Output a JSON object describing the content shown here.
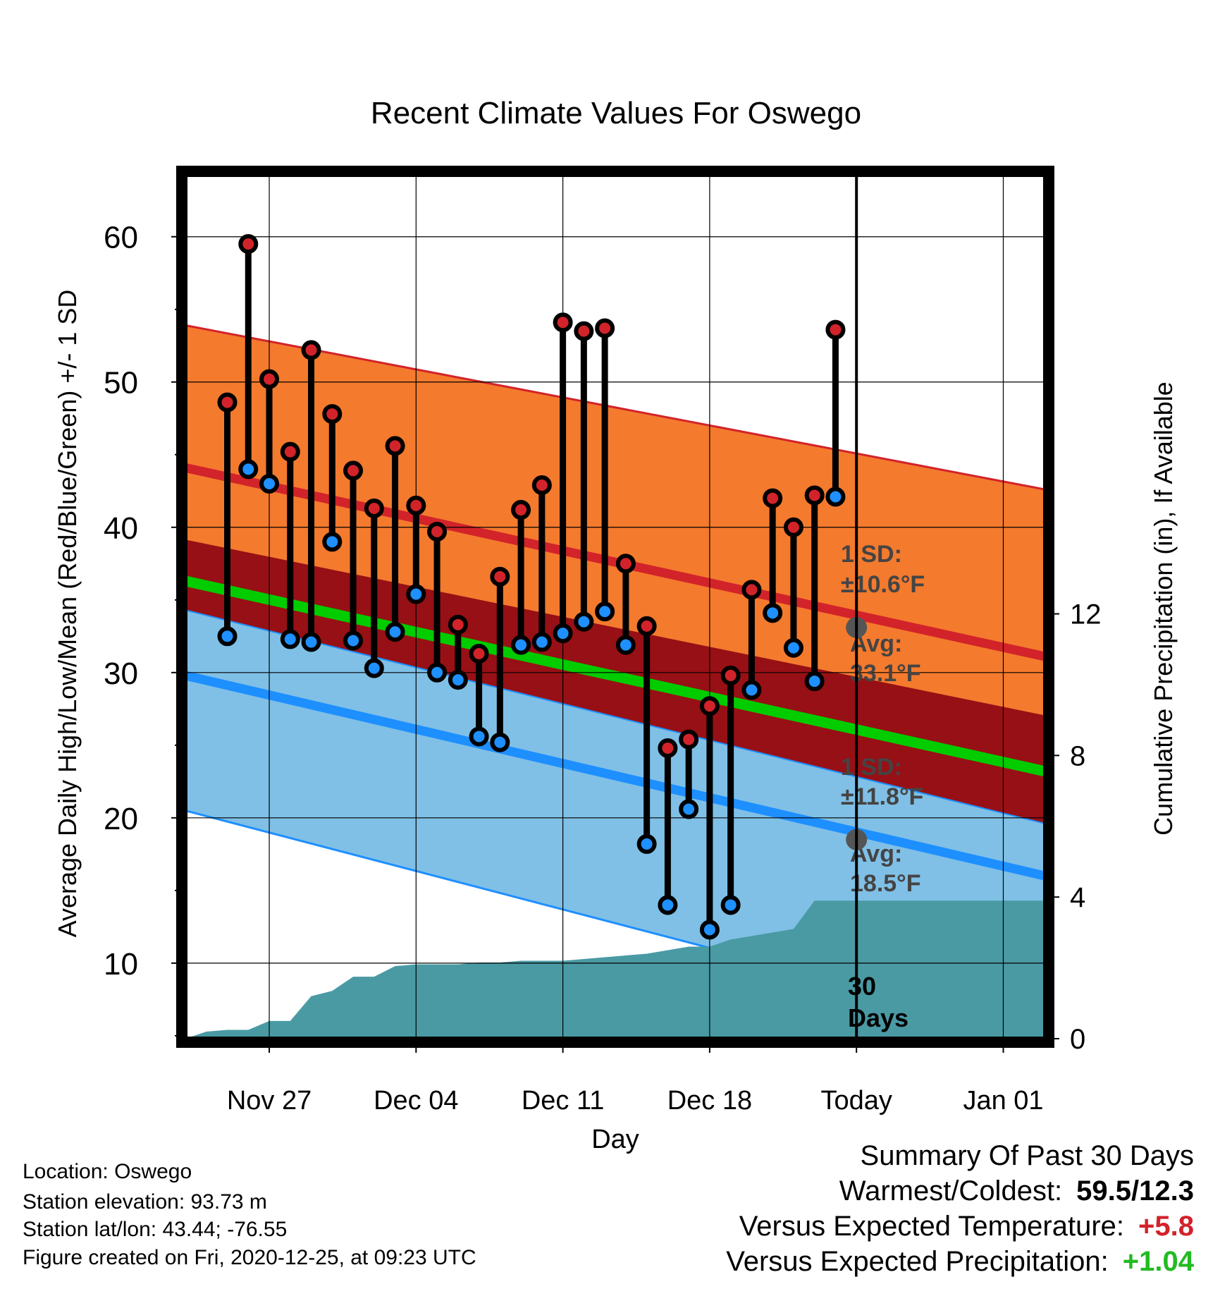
{
  "chart_data": {
    "type": "line",
    "title": "Recent Climate Values For Oswego",
    "xlabel": "Day",
    "ylabel": "Average Daily High/Low/Mean (Red/Blue/Green) +/- 1 SD",
    "y2label": "Cumulative Precipitation (in), If Available",
    "x_tick_labels": [
      "Nov 27",
      "Dec 04",
      "Dec 11",
      "Dec 18",
      "Today",
      "Jan 01"
    ],
    "y_ticks": [
      10,
      20,
      30,
      40,
      50,
      60
    ],
    "y2_ticks": [
      0,
      4,
      8,
      12
    ],
    "ylim": [
      4.8,
      64.5
    ],
    "y2lim": [
      0,
      24.5
    ],
    "xlim": [
      "2020-11-23",
      "2021-01-03"
    ],
    "grid": true,
    "today": "2020-12-25",
    "observations": {
      "dates": [
        "2020-11-25",
        "2020-11-26",
        "2020-11-27",
        "2020-11-28",
        "2020-11-29",
        "2020-11-30",
        "2020-12-01",
        "2020-12-02",
        "2020-12-03",
        "2020-12-04",
        "2020-12-05",
        "2020-12-06",
        "2020-12-07",
        "2020-12-08",
        "2020-12-09",
        "2020-12-10",
        "2020-12-11",
        "2020-12-12",
        "2020-12-13",
        "2020-12-14",
        "2020-12-15",
        "2020-12-16",
        "2020-12-17",
        "2020-12-18",
        "2020-12-19",
        "2020-12-20",
        "2020-12-21",
        "2020-12-22",
        "2020-12-23",
        "2020-12-24"
      ],
      "high": [
        48.6,
        59.5,
        50.2,
        45.2,
        52.2,
        47.8,
        43.9,
        41.3,
        45.6,
        41.5,
        39.7,
        33.3,
        31.3,
        36.6,
        41.2,
        42.9,
        54.1,
        53.5,
        53.7,
        37.5,
        33.2,
        24.8,
        25.4,
        27.7,
        29.8,
        35.7,
        42.0,
        40.0,
        42.2,
        53.6
      ],
      "low": [
        32.5,
        44.0,
        43.0,
        32.3,
        32.1,
        39.0,
        32.2,
        30.3,
        32.8,
        35.4,
        30.0,
        29.5,
        25.6,
        25.2,
        31.9,
        32.1,
        32.7,
        33.5,
        34.2,
        31.9,
        18.2,
        14.0,
        20.6,
        12.3,
        14.0,
        28.8,
        34.1,
        31.7,
        29.4,
        42.1
      ],
      "high_color": "#d2232a",
      "low_color": "#1e90ff"
    },
    "normals": {
      "dates": [
        "2020-11-23",
        "2021-01-03"
      ],
      "avg_high": [
        44.1,
        31.1
      ],
      "avg_high_plus_1sd": [
        53.9,
        42.6
      ],
      "avg_low": [
        29.8,
        16.0
      ],
      "avg_low_minus_1sd": [
        20.5,
        5.0
      ],
      "avg_mean": [
        36.3,
        23.2
      ],
      "high_color": "#d2232a",
      "high_band_color": "#f47a2d",
      "low_color": "#1e8fff",
      "low_band_color": "#80c0e6",
      "mean_color": "#00cc00",
      "overlap_color": "#971015"
    },
    "precipitation": {
      "dates": [
        "2020-11-23",
        "2020-11-24",
        "2020-11-25",
        "2020-11-26",
        "2020-11-27",
        "2020-11-28",
        "2020-11-29",
        "2020-11-30",
        "2020-12-01",
        "2020-12-02",
        "2020-12-03",
        "2020-12-04",
        "2020-12-05",
        "2020-12-06",
        "2020-12-07",
        "2020-12-08",
        "2020-12-09",
        "2020-12-10",
        "2020-12-11",
        "2020-12-12",
        "2020-12-13",
        "2020-12-14",
        "2020-12-15",
        "2020-12-16",
        "2020-12-17",
        "2020-12-18",
        "2020-12-19",
        "2020-12-20",
        "2020-12-21",
        "2020-12-22",
        "2020-12-23",
        "2020-12-24",
        "2021-01-03"
      ],
      "cumulative": [
        0,
        0.2,
        0.25,
        0.25,
        0.5,
        0.5,
        1.2,
        1.35,
        1.75,
        1.75,
        2.05,
        2.1,
        2.1,
        2.1,
        2.15,
        2.15,
        2.2,
        2.2,
        2.2,
        2.25,
        2.3,
        2.35,
        2.4,
        2.5,
        2.6,
        2.6,
        2.8,
        2.9,
        3.0,
        3.1,
        3.9,
        3.9,
        3.9
      ],
      "color": "#4a9aa4"
    },
    "annotations": {
      "high_sd": "1 SD:",
      "high_sd_value": "±10.6°F",
      "high_avg": "Avg:",
      "high_avg_value": "33.1°F",
      "high_avg_marker": 33.1,
      "low_sd": "1 SD:",
      "low_sd_value": "±11.8°F",
      "low_avg": "Avg:",
      "low_avg_value": "18.5°F",
      "low_avg_marker": 18.5,
      "days_line1": "30",
      "days_line2": "Days"
    }
  },
  "info": {
    "location": "Location: Oswego",
    "elevation": "Station elevation: 93.73 m",
    "latlon": "Station lat/lon: 43.44; -76.55",
    "created": "Figure created on Fri, 2020-12-25, at 09:23 UTC"
  },
  "summary": {
    "title": "Summary Of Past 30 Days",
    "warm_cold_label": "Warmest/Coldest:",
    "warm_cold_value": "59.5/12.3",
    "temp_label": "Versus Expected Temperature:",
    "temp_value": "+5.8",
    "temp_color": "#d2232a",
    "precip_label": "Versus Expected Precipitation:",
    "precip_value": "+1.04",
    "precip_color": "#22bb22"
  }
}
